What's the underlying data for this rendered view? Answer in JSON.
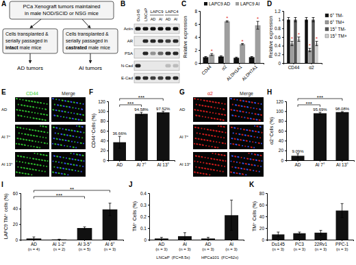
{
  "diagram": {
    "panel": "A",
    "top": [
      "PCa Xenograft tumors maintained",
      "in male NOD/SCID or NSG mice"
    ],
    "branches": [
      {
        "lines": [
          [
            {
              "text": "Cells transplanted &"
            }
          ],
          [
            {
              "text": "serially passaged in"
            }
          ],
          [
            {
              "text": "intact",
              "bold": true
            },
            {
              "text": " male mice"
            }
          ]
        ],
        "result": "AD tumors"
      },
      {
        "lines": [
          [
            {
              "text": "Cells transplanted &"
            }
          ],
          [
            {
              "text": "serially passaged in"
            }
          ],
          [
            {
              "text": "castrated",
              "bold": true
            },
            {
              "text": " male mice"
            }
          ]
        ],
        "result": "AI tumors"
      }
    ]
  },
  "blot": {
    "panel": "B",
    "samples": [
      {
        "name": "Du145"
      },
      {
        "name": "LNCaP"
      },
      {
        "name": "LAPC9",
        "conditions": [
          "AD",
          "AI"
        ]
      },
      {
        "name": "LAPC4",
        "conditions": [
          "AD",
          "AI"
        ]
      }
    ],
    "proteins": [
      "Actin",
      "AR",
      "PSA",
      "N-Cad",
      "E-Cad"
    ],
    "bands": [
      [
        1,
        1,
        1,
        1,
        1,
        1
      ],
      [
        0,
        0.9,
        0.9,
        0.9,
        0.8,
        0.9
      ],
      [
        0,
        0.9,
        0.4,
        0.6,
        0.9,
        0.9
      ],
      [
        0.9,
        0,
        0,
        0,
        0.2,
        0.2
      ],
      [
        0.9,
        0.9,
        0.8,
        0.8,
        0.9,
        0.9
      ]
    ]
  },
  "images": [
    {
      "panel": "E",
      "columns": [
        "CD44",
        "Merge"
      ],
      "rows": [
        "AD",
        "AI 7°",
        "AI 13°"
      ],
      "color": "#33cc33"
    },
    {
      "panel": "G",
      "columns": [
        "α2",
        "Merge"
      ],
      "rows": [
        "AD",
        "AI 7°",
        "AI 13°"
      ],
      "color": "#e02020"
    }
  ],
  "chart_data": [
    {
      "panel": "C",
      "type": "bar",
      "y_label": "Relative expression",
      "categories": [
        "CD44",
        "α2",
        "ALDH1A1",
        "ALDH7A1"
      ],
      "ylim": [
        0,
        8
      ],
      "yticks": [
        0,
        2,
        4,
        6,
        8
      ],
      "legend": "top",
      "series": [
        {
          "name": "LAPC9 AD",
          "color": "#111111",
          "values": [
            0.9,
            1.0,
            0.8,
            0.9
          ],
          "errors": [
            0.1,
            0.1,
            0.1,
            0.1
          ]
        },
        {
          "name": "LAPC9 AI",
          "color": "#9e9e9e",
          "values": [
            1.3,
            6.4,
            2.9,
            5.8
          ],
          "errors": [
            0.15,
            0.1,
            0.1,
            0.6
          ],
          "significance": [
            "*",
            "*",
            "*",
            "*"
          ]
        }
      ]
    },
    {
      "panel": "D",
      "type": "bar",
      "y_label": "Relative expression",
      "categories": [
        "CD44",
        "α2"
      ],
      "ylim": [
        0,
        1.2
      ],
      "yticks": [
        0,
        0.2,
        0.4,
        0.6,
        0.8,
        1,
        1.2
      ],
      "legend": "right",
      "series": [
        {
          "name": "6° TM-",
          "color": "#111111",
          "values": [
            1.0,
            1.0
          ],
          "errors": [
            0.05,
            0.05
          ]
        },
        {
          "name": "6° TM+",
          "color": "#9a9a9a",
          "values": [
            0.45,
            0.3
          ],
          "errors": [
            0.05,
            0.04
          ],
          "significance": [
            "*",
            "*"
          ]
        },
        {
          "name": "15° TM-",
          "color": "#555555",
          "values": [
            1.0,
            1.0
          ],
          "errors": [
            0.05,
            0.05
          ]
        },
        {
          "name": "15° TM+",
          "color": "#d0d0d0",
          "values": [
            0.55,
            0.45
          ],
          "errors": [
            0.05,
            0.05
          ],
          "significance": [
            "*",
            "*"
          ]
        }
      ]
    },
    {
      "panel": "F",
      "type": "bar",
      "y_label": "CD44⁺Cells (%)",
      "categories": [
        "AD",
        "AI 7°",
        "AI 13°"
      ],
      "ylim": [
        0,
        120
      ],
      "yticks": [
        0,
        20,
        40,
        60,
        80,
        100,
        120
      ],
      "color": "#111111",
      "values": [
        36.66,
        94.58,
        97.52
      ],
      "errors": [
        12,
        3,
        2
      ],
      "value_labels": [
        "36.66%",
        "94.58%",
        "97.52%"
      ],
      "data_labels": true,
      "comparisons": [
        {
          "between": [
            "AD",
            "AI 7°"
          ],
          "label": "***"
        },
        {
          "between": [
            "AD",
            "AI 13°"
          ],
          "label": "***"
        }
      ]
    },
    {
      "panel": "H",
      "type": "bar",
      "y_label": "α2⁺Cells (%)",
      "categories": [
        "AD",
        "AI 7°",
        "AI 13°"
      ],
      "ylim": [
        0,
        120
      ],
      "yticks": [
        0,
        20,
        40,
        60,
        80,
        100,
        120
      ],
      "color": "#111111",
      "values": [
        9.09,
        95.69,
        98.08
      ],
      "errors": [
        4,
        2,
        1
      ],
      "value_labels": [
        "9.09%",
        "95.69%",
        "98.08%"
      ],
      "data_labels": true,
      "comparisons": [
        {
          "between": [
            "AD",
            "AI 7°"
          ],
          "label": "***"
        },
        {
          "between": [
            "AD",
            "AI 13°"
          ],
          "label": "***"
        }
      ]
    },
    {
      "panel": "I",
      "type": "bar",
      "y_label": "LAPC9 TM⁺ cells (%)",
      "categories": [
        "AD",
        "AI 1-2°",
        "AI 3-5°",
        "AI 6°"
      ],
      "category_notes": [
        "(n = 4)",
        "(n = 2)",
        "(n = 5)",
        "(n = 3)"
      ],
      "ylim": [
        0,
        60
      ],
      "yticks": [
        0,
        20,
        40,
        60
      ],
      "color": "#111111",
      "values": [
        1.5,
        0.3,
        15,
        39
      ],
      "errors": [
        2,
        0.3,
        1.5,
        8
      ],
      "comparisons": [
        {
          "between": [
            "AD",
            "AI 3-5°"
          ],
          "label": "***"
        },
        {
          "between": [
            "AD",
            "AI 6°"
          ],
          "label": "**"
        }
      ]
    },
    {
      "panel": "J",
      "type": "bar",
      "y_label": "TM⁺ Cells (%)",
      "categories": [
        "AD",
        "AI",
        "AD",
        "AI"
      ],
      "category_notes": [
        "(n = 3)",
        "(n = 3)",
        "(n = 3)",
        "(n = 3)"
      ],
      "groups": [
        {
          "label": "LNCaP",
          "note": "(FC=8.5x)"
        },
        {
          "label": "HPCa101",
          "note": "(FC=62x)"
        }
      ],
      "ylim": [
        0,
        0.4
      ],
      "yticks": [
        0,
        0.1,
        0.2,
        0.3,
        0.4
      ],
      "color": "#111111",
      "values": [
        0.01,
        0.03,
        0.01,
        0.21
      ],
      "errors": [
        0.01,
        0.03,
        0.01,
        0.13
      ]
    },
    {
      "panel": "K",
      "type": "bar",
      "y_label": "TM⁺ Cells (%)",
      "categories": [
        "Du145",
        "PC3",
        "22Rv1",
        "PPC-1"
      ],
      "category_notes": [
        "(n = 3)",
        "(n = 3)",
        "(n = 3)",
        "(n = 3)"
      ],
      "ylim": [
        0,
        80
      ],
      "yticks": [
        0,
        20,
        40,
        60,
        80
      ],
      "color": "#111111",
      "values": [
        9,
        11,
        12,
        50
      ],
      "errors": [
        4,
        2,
        4,
        12
      ]
    }
  ]
}
